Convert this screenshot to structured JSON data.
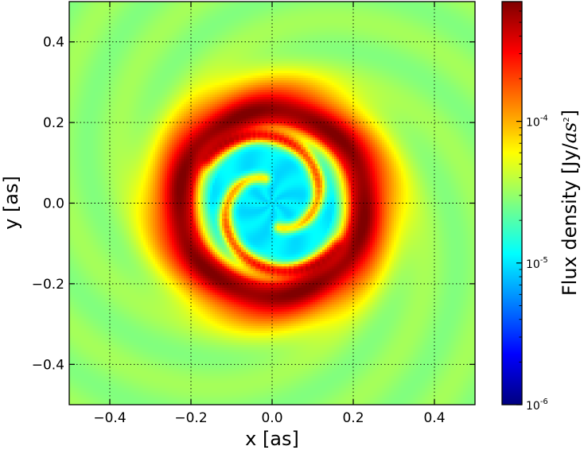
{
  "chart_data": {
    "type": "heatmap",
    "title": "",
    "xlabel": "x [as]",
    "ylabel": "y [as]",
    "xlim": [
      -0.5,
      0.5
    ],
    "ylim": [
      -0.5,
      0.5
    ],
    "xticks": [
      -0.4,
      -0.2,
      0.0,
      0.2,
      0.4
    ],
    "yticks": [
      -0.4,
      -0.2,
      0.0,
      0.2,
      0.4
    ],
    "xtick_labels": [
      "−0.4",
      "−0.2",
      "0.0",
      "0.2",
      "0.4"
    ],
    "ytick_labels": [
      "−0.4",
      "−0.2",
      "0.0",
      "0.2",
      "0.4"
    ],
    "grid": true,
    "colormap": "jet",
    "scale": "log",
    "colorbar": {
      "label_main": "Flux density [Jy/",
      "label_math": "as",
      "label_sup": "2",
      "label_end": "]",
      "range": [
        1e-06,
        0.0007
      ],
      "ticks": [
        {
          "value": 1e-06,
          "base": "10",
          "exp": "-6"
        },
        {
          "value": 1e-05,
          "base": "10",
          "exp": "-5"
        },
        {
          "value": 0.0001,
          "base": "10",
          "exp": "-4"
        }
      ]
    },
    "model": {
      "background_flux": 3e-05,
      "ring_radius": 0.23,
      "ring_peak_flux": 0.00065,
      "halo_extent": 0.31,
      "central_cavity_flux": 9e-06,
      "spiral_arms": 2,
      "spiral_start_angle_deg": 145,
      "spiral_end_angle_deg": 20,
      "spiral_inner_radius": 0.06,
      "spiral_peak_flux": 0.0005
    }
  }
}
